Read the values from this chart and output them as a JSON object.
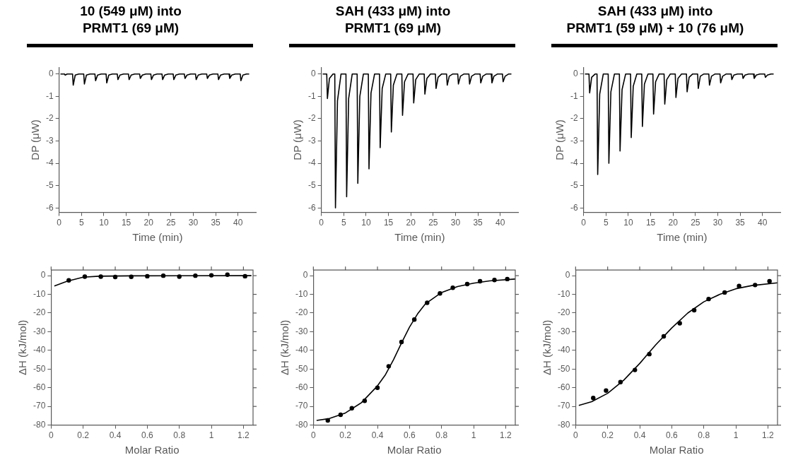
{
  "chart_data": [
    {
      "type": "line",
      "title": "10 (549 μM) into\nPRMT1 (69 μM)",
      "xlabel": "Time (min)",
      "ylabel": "DP (μW)",
      "marker": "none",
      "grid": false,
      "legend": false,
      "xlim": [
        0,
        44
      ],
      "xticks": [
        0,
        5,
        10,
        15,
        20,
        25,
        30,
        35,
        40
      ],
      "ylim": [
        -6.2,
        0.3
      ],
      "yticks": [
        -6,
        -5,
        -4,
        -3,
        -2,
        -1,
        0
      ],
      "x": [
        0.3,
        1.2,
        1.35,
        1.8,
        2.6,
        3,
        3.15,
        3.6,
        4.4,
        5.5,
        5.65,
        6.1,
        6.9,
        8,
        8.15,
        8.6,
        9.4,
        10.5,
        10.65,
        11.1,
        11.9,
        13,
        13.15,
        13.6,
        14.4,
        15.5,
        15.65,
        16.1,
        16.9,
        18,
        18.15,
        18.6,
        19.4,
        20.5,
        20.65,
        21.1,
        21.9,
        23,
        23.15,
        23.6,
        24.4,
        25.5,
        25.65,
        26.1,
        26.9,
        28,
        28.15,
        28.6,
        29.4,
        30.5,
        30.65,
        31.1,
        31.9,
        33,
        33.15,
        33.6,
        34.4,
        35.5,
        35.65,
        36.1,
        36.9,
        38,
        38.15,
        38.6,
        39.4,
        40.5,
        40.65,
        41.1,
        41.9,
        42.5
      ],
      "series": [
        {
          "color": "#000000",
          "values": [
            0,
            0,
            -0.05,
            0,
            0,
            0,
            -0.5,
            -0.05,
            0,
            0,
            -0.45,
            -0.05,
            0,
            0,
            -0.3,
            -0.05,
            0,
            0,
            -0.4,
            -0.05,
            0,
            0,
            -0.25,
            -0.05,
            0,
            0,
            -0.25,
            -0.05,
            0,
            0,
            -0.2,
            -0.05,
            0,
            0,
            -0.25,
            -0.05,
            0,
            0,
            -0.25,
            -0.05,
            0,
            0,
            -0.25,
            -0.05,
            0,
            0,
            -0.2,
            -0.05,
            0,
            0,
            -0.25,
            -0.05,
            0,
            0,
            -0.2,
            -0.05,
            0,
            0,
            -0.25,
            -0.05,
            0,
            0,
            -0.2,
            -0.05,
            0,
            0,
            -0.3,
            -0.05,
            0,
            0
          ]
        }
      ]
    },
    {
      "type": "line",
      "title": "SAH (433 μM) into\nPRMT1 (69 μM)",
      "xlabel": "Time (min)",
      "ylabel": "DP (μW)",
      "marker": "none",
      "grid": false,
      "legend": false,
      "xlim": [
        0,
        44
      ],
      "xticks": [
        0,
        5,
        10,
        15,
        20,
        25,
        30,
        35,
        40
      ],
      "ylim": [
        -6.2,
        0.3
      ],
      "yticks": [
        -6,
        -5,
        -4,
        -3,
        -2,
        -1,
        0
      ],
      "x": [
        0.3,
        1.2,
        1.35,
        1.8,
        2.6,
        3,
        3.15,
        3.6,
        4.4,
        5.5,
        5.65,
        6.1,
        6.9,
        8,
        8.15,
        8.6,
        9.4,
        10.5,
        10.65,
        11.1,
        11.9,
        13,
        13.15,
        13.6,
        14.4,
        15.5,
        15.65,
        16.1,
        16.9,
        18,
        18.15,
        18.6,
        19.4,
        20.5,
        20.65,
        21.1,
        21.9,
        23,
        23.15,
        23.6,
        24.4,
        25.5,
        25.65,
        26.1,
        26.9,
        28,
        28.15,
        28.6,
        29.4,
        30.5,
        30.65,
        31.1,
        31.9,
        33,
        33.15,
        33.6,
        34.4,
        35.5,
        35.65,
        36.1,
        36.9,
        38,
        38.15,
        38.6,
        39.4,
        40.5,
        40.65,
        41.1,
        41.9,
        42.5
      ],
      "series": [
        {
          "color": "#000000",
          "values": [
            0,
            0,
            -1.1,
            -0.2,
            0,
            0,
            -6,
            -1.2,
            0,
            0,
            -5.5,
            -1.1,
            0,
            0,
            -4.9,
            -1,
            0,
            0,
            -4.25,
            -0.85,
            0,
            0,
            -3.3,
            -0.65,
            0,
            0,
            -2.6,
            -0.5,
            0,
            0,
            -1.85,
            -0.35,
            0,
            0,
            -1.3,
            -0.25,
            0,
            0,
            -0.9,
            -0.2,
            0,
            0,
            -0.65,
            -0.15,
            0,
            0,
            -0.5,
            -0.1,
            0,
            0,
            -0.45,
            -0.1,
            0,
            0,
            -0.45,
            -0.1,
            0,
            0,
            -0.4,
            -0.1,
            0,
            0,
            -0.4,
            -0.1,
            0,
            0,
            -0.35,
            -0.1,
            0,
            0
          ]
        }
      ]
    },
    {
      "type": "line",
      "title": "SAH (433 μM) into\nPRMT1 (59 μM) + 10 (76 μM)",
      "xlabel": "Time (min)",
      "ylabel": "DP (μW)",
      "marker": "none",
      "grid": false,
      "legend": false,
      "xlim": [
        0,
        44
      ],
      "xticks": [
        0,
        5,
        10,
        15,
        20,
        25,
        30,
        35,
        40
      ],
      "ylim": [
        -6.2,
        0.3
      ],
      "yticks": [
        -6,
        -5,
        -4,
        -3,
        -2,
        -1,
        0
      ],
      "x": [
        0.3,
        1.2,
        1.35,
        1.8,
        2.6,
        3,
        3.15,
        3.6,
        4.4,
        5.5,
        5.65,
        6.1,
        6.9,
        8,
        8.15,
        8.6,
        9.4,
        10.5,
        10.65,
        11.1,
        11.9,
        13,
        13.15,
        13.6,
        14.4,
        15.5,
        15.65,
        16.1,
        16.9,
        18,
        18.15,
        18.6,
        19.4,
        20.5,
        20.65,
        21.1,
        21.9,
        23,
        23.15,
        23.6,
        24.4,
        25.5,
        25.65,
        26.1,
        26.9,
        28,
        28.15,
        28.6,
        29.4,
        30.5,
        30.65,
        31.1,
        31.9,
        33,
        33.15,
        33.6,
        34.4,
        35.5,
        35.65,
        36.1,
        36.9,
        38,
        38.15,
        38.6,
        39.4,
        40.5,
        40.65,
        41.1,
        41.9,
        42.5
      ],
      "series": [
        {
          "color": "#000000",
          "values": [
            0,
            0,
            -0.85,
            -0.15,
            0,
            0,
            -4.5,
            -0.9,
            0,
            0,
            -4,
            -0.8,
            0,
            0,
            -3.45,
            -0.7,
            0,
            0,
            -2.85,
            -0.55,
            0,
            0,
            -2.35,
            -0.45,
            0,
            0,
            -1.8,
            -0.35,
            0,
            0,
            -1.35,
            -0.25,
            0,
            0,
            -1.05,
            -0.2,
            0,
            0,
            -0.8,
            -0.15,
            0,
            0,
            -0.65,
            -0.1,
            0,
            0,
            -0.5,
            -0.1,
            0,
            0,
            -0.4,
            -0.1,
            0,
            0,
            -0.25,
            -0.05,
            0,
            0,
            -0.2,
            -0.05,
            0,
            0,
            -0.2,
            -0.05,
            0,
            0,
            -0.15,
            -0.05,
            0,
            0
          ]
        }
      ]
    },
    {
      "type": "scatter",
      "xlabel": "Molar Ratio",
      "ylabel": "ΔH (kJ/mol)",
      "grid": false,
      "legend": false,
      "xlim": [
        0,
        1.26
      ],
      "xticks": [
        0,
        0.2,
        0.4,
        0.6,
        0.8,
        1,
        1.2
      ],
      "ylim": [
        -80,
        3
      ],
      "yticks": [
        -80,
        -70,
        -60,
        -50,
        -40,
        -30,
        -20,
        -10,
        0
      ],
      "series": [
        {
          "color": "#000000",
          "marker": "circle",
          "x": [
            0.11,
            0.21,
            0.31,
            0.4,
            0.5,
            0.6,
            0.7,
            0.8,
            0.9,
            1.0,
            1.1,
            1.21
          ],
          "values": [
            -2.5,
            -0.5,
            -0.5,
            -0.7,
            -0.6,
            -0.3,
            0,
            -0.5,
            0,
            0.2,
            0.5,
            -0.3
          ]
        },
        {
          "type": "line",
          "marker": "none",
          "color": "#000000",
          "x": [
            0.02,
            0.1,
            0.2,
            0.3,
            0.5,
            1.25
          ],
          "values": [
            -5.5,
            -3,
            -0.8,
            -0.3,
            -0.1,
            0
          ]
        }
      ]
    },
    {
      "type": "scatter",
      "xlabel": "Molar Ratio",
      "ylabel": "ΔH (kJ/mol)",
      "grid": false,
      "legend": false,
      "xlim": [
        0,
        1.26
      ],
      "xticks": [
        0,
        0.2,
        0.4,
        0.6,
        0.8,
        1,
        1.2
      ],
      "ylim": [
        -80,
        3
      ],
      "yticks": [
        -80,
        -70,
        -60,
        -50,
        -40,
        -30,
        -20,
        -10,
        0
      ],
      "series": [
        {
          "color": "#000000",
          "marker": "circle",
          "x": [
            0.09,
            0.17,
            0.24,
            0.32,
            0.4,
            0.47,
            0.55,
            0.63,
            0.71,
            0.79,
            0.87,
            0.96,
            1.04,
            1.13,
            1.21
          ],
          "values": [
            -77.5,
            -74.5,
            -71,
            -67,
            -60,
            -48.5,
            -35.5,
            -23.5,
            -14.5,
            -9.5,
            -6.5,
            -4.5,
            -3,
            -2.3,
            -1.8
          ]
        },
        {
          "type": "line",
          "marker": "none",
          "color": "#000000",
          "x": [
            0.02,
            0.1,
            0.2,
            0.3,
            0.4,
            0.45,
            0.5,
            0.55,
            0.6,
            0.65,
            0.7,
            0.8,
            0.9,
            1.0,
            1.1,
            1.26
          ],
          "values": [
            -77.5,
            -76.5,
            -73.5,
            -68,
            -59,
            -53,
            -45,
            -36,
            -27.5,
            -20.5,
            -15,
            -9,
            -5.8,
            -4,
            -2.8,
            -1.8
          ]
        }
      ]
    },
    {
      "type": "scatter",
      "xlabel": "Molar Ratio",
      "ylabel": "ΔH (kJ/mol)",
      "grid": false,
      "legend": false,
      "xlim": [
        0,
        1.26
      ],
      "xticks": [
        0,
        0.2,
        0.4,
        0.6,
        0.8,
        1,
        1.2
      ],
      "ylim": [
        -80,
        3
      ],
      "yticks": [
        -80,
        -70,
        -60,
        -50,
        -40,
        -30,
        -20,
        -10,
        0
      ],
      "series": [
        {
          "color": "#000000",
          "marker": "circle",
          "x": [
            0.11,
            0.19,
            0.28,
            0.37,
            0.46,
            0.55,
            0.65,
            0.74,
            0.83,
            0.93,
            1.02,
            1.12,
            1.21
          ],
          "values": [
            -65.5,
            -61.5,
            -57,
            -50.5,
            -42,
            -32.5,
            -25.5,
            -18.5,
            -12.5,
            -9,
            -5.5,
            -5,
            -3
          ]
        },
        {
          "type": "line",
          "marker": "none",
          "color": "#000000",
          "x": [
            0.02,
            0.1,
            0.2,
            0.3,
            0.4,
            0.5,
            0.6,
            0.7,
            0.8,
            0.9,
            1.0,
            1.1,
            1.26
          ],
          "values": [
            -69.5,
            -67.5,
            -63,
            -56,
            -47,
            -37,
            -28,
            -20,
            -14,
            -10,
            -7,
            -5.3,
            -3.8
          ]
        }
      ]
    }
  ]
}
